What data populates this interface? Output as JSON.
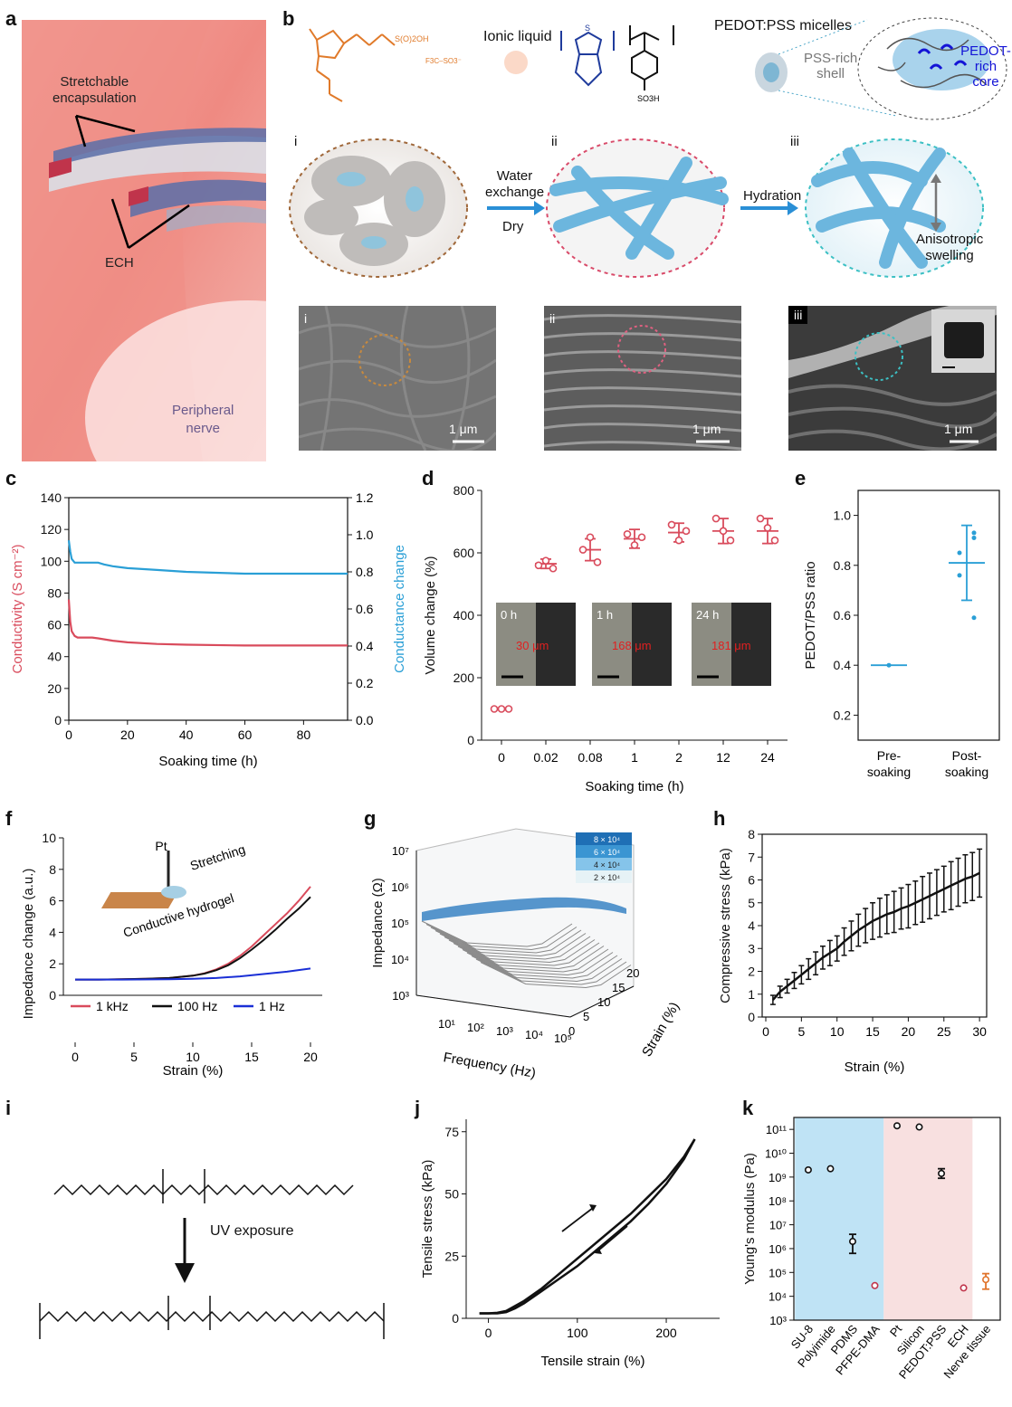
{
  "panel_labels": {
    "a": "a",
    "b": "b",
    "c": "c",
    "d": "d",
    "e": "e",
    "f": "f",
    "g": "g",
    "h": "h",
    "i": "i",
    "j": "j",
    "k": "k"
  },
  "panel_a": {
    "encapsulation": [
      "Stretchable",
      "encapsulation"
    ],
    "ech": "ECH",
    "nerve": [
      "Peripheral",
      "nerve"
    ]
  },
  "panel_b": {
    "ionic_liquid": "Ionic liquid",
    "micelles": "PEDOT:PSS micelles",
    "pss_shell": [
      "PSS-rich",
      "shell"
    ],
    "pedot_core": [
      "PEDOT-rich",
      "core"
    ],
    "stage_labels": [
      "i",
      "ii",
      "iii"
    ],
    "step1": [
      "Water",
      "exchange"
    ],
    "step1_sub": "Dry",
    "step2": "Hydration",
    "anisotropic": [
      "Anisotropic",
      "swelling"
    ],
    "sem_labels": [
      "i",
      "ii",
      "iii"
    ],
    "scale": "1 μm"
  },
  "colors": {
    "red": "#d94b5c",
    "blue": "#2a9fd6",
    "orange": "#e0732a",
    "navy": "#1f3b9c",
    "black": "#111111"
  },
  "chart_data": [
    {
      "id": "c",
      "type": "line",
      "xlabel": "Soaking time (h)",
      "ylabel": "Conductivity (S cm⁻²)",
      "y2label": "Conductance change",
      "xlim": [
        0,
        95
      ],
      "ylim": [
        0,
        140
      ],
      "y2lim": [
        0,
        1.2
      ],
      "xticks": [
        0,
        20,
        40,
        60,
        80
      ],
      "yticks": [
        0,
        20,
        40,
        60,
        80,
        100,
        120,
        140
      ],
      "y2ticks": [
        0.0,
        0.2,
        0.4,
        0.6,
        0.8,
        1.0,
        1.2
      ],
      "series": [
        {
          "name": "Conductivity",
          "axis": "left",
          "x": [
            0,
            0.5,
            1,
            2,
            3,
            5,
            8,
            10,
            15,
            20,
            30,
            40,
            60,
            80,
            95
          ],
          "y": [
            76,
            62,
            56,
            53,
            52,
            52,
            52,
            51.5,
            50,
            49,
            48,
            47.5,
            47,
            47,
            47
          ]
        },
        {
          "name": "Conductance change",
          "axis": "right",
          "x": [
            0,
            0.5,
            1,
            2,
            3,
            5,
            8,
            10,
            12,
            15,
            20,
            30,
            40,
            60,
            80,
            95
          ],
          "y": [
            0.97,
            0.91,
            0.87,
            0.85,
            0.85,
            0.85,
            0.85,
            0.85,
            0.84,
            0.83,
            0.82,
            0.81,
            0.8,
            0.79,
            0.79,
            0.79
          ]
        }
      ]
    },
    {
      "id": "d",
      "type": "scatter",
      "xlabel": "Soaking time (h)",
      "ylabel": "Volume change (%)",
      "categories": [
        "0",
        "0.02",
        "0.08",
        "1",
        "2",
        "12",
        "24"
      ],
      "ylim": [
        0,
        800
      ],
      "yticks": [
        0,
        200,
        400,
        600,
        800
      ],
      "points": [
        [
          100,
          100,
          100
        ],
        [
          560,
          575,
          550
        ],
        [
          610,
          650,
          570
        ],
        [
          660,
          625,
          650
        ],
        [
          690,
          640,
          670
        ],
        [
          710,
          670,
          640
        ],
        [
          710,
          680,
          640
        ]
      ],
      "mean": [
        100,
        565,
        610,
        645,
        665,
        670,
        670
      ],
      "err": [
        3,
        15,
        35,
        30,
        30,
        40,
        40
      ],
      "insets": [
        {
          "time": "0 h",
          "width": "30 μm"
        },
        {
          "time": "1 h",
          "width": "168 μm"
        },
        {
          "time": "24 h",
          "width": "181 μm"
        }
      ]
    },
    {
      "id": "e",
      "type": "scatter",
      "ylabel": "PEDOT/PSS ratio",
      "categories": [
        [
          "Pre-",
          "soaking"
        ],
        [
          "Post-",
          "soaking"
        ]
      ],
      "ylim": [
        0.1,
        1.1
      ],
      "yticks": [
        0.2,
        0.4,
        0.6,
        0.8,
        1.0
      ],
      "points": [
        [
          0.4
        ],
        [
          0.93,
          0.85,
          0.59,
          0.76,
          0.91
        ]
      ],
      "mean": [
        0.4,
        0.81
      ],
      "err": [
        0,
        0.15
      ]
    },
    {
      "id": "f",
      "type": "line",
      "xlabel": "Strain (%)",
      "ylabel": "Impedance change (a.u.)",
      "xlim": [
        -1,
        21
      ],
      "ylim": [
        0,
        10
      ],
      "xticks": [
        0,
        5,
        10,
        15,
        20
      ],
      "yticks": [
        0,
        2,
        4,
        6,
        8,
        10
      ],
      "inset": {
        "pt": "Pt",
        "stretching": "Stretching",
        "hydrogel": "Conductive hydrogel"
      },
      "series": [
        {
          "name": "1 kHz",
          "x": [
            0,
            2,
            4,
            6,
            8,
            10,
            11,
            12,
            13,
            14,
            15,
            16,
            17,
            18,
            19,
            20
          ],
          "y": [
            1,
            1,
            1.02,
            1.05,
            1.1,
            1.25,
            1.4,
            1.65,
            2,
            2.5,
            3.1,
            3.8,
            4.5,
            5.2,
            6,
            6.9
          ]
        },
        {
          "name": "100 Hz",
          "x": [
            0,
            2,
            4,
            6,
            8,
            10,
            11,
            12,
            13,
            14,
            15,
            16,
            17,
            18,
            19,
            20
          ],
          "y": [
            1,
            1,
            1.02,
            1.05,
            1.1,
            1.25,
            1.38,
            1.6,
            1.9,
            2.35,
            2.9,
            3.5,
            4.15,
            4.85,
            5.5,
            6.25
          ]
        },
        {
          "name": "1 Hz",
          "x": [
            0,
            4,
            8,
            10,
            12,
            14,
            16,
            18,
            20
          ],
          "y": [
            1,
            1,
            1.02,
            1.05,
            1.1,
            1.2,
            1.35,
            1.5,
            1.7
          ]
        }
      ]
    },
    {
      "id": "g",
      "type": "surface",
      "xlabel": "Frequency (Hz)",
      "ylabel": "Impedance (Ω)",
      "zlabel": "Strain (%)",
      "ztick_labels": [
        "10³",
        "10⁴",
        "10⁵",
        "10⁶",
        "10⁷"
      ],
      "xtick_labels": [
        "10¹",
        "10²",
        "10³",
        "10⁴",
        "10⁵"
      ],
      "strain_ticks": [
        "0",
        "5",
        "10",
        "15",
        "20"
      ],
      "legend": [
        "8 × 10⁴",
        "6 × 10⁴",
        "4 × 10⁴",
        "2 × 10⁴"
      ]
    },
    {
      "id": "h",
      "type": "line",
      "xlabel": "Strain (%)",
      "ylabel": "Compressive stress (kPa)",
      "xlim": [
        0,
        31
      ],
      "ylim": [
        0,
        8
      ],
      "xticks": [
        0,
        5,
        10,
        15,
        20,
        25,
        30
      ],
      "yticks": [
        0,
        1,
        2,
        3,
        4,
        5,
        6,
        7,
        8
      ],
      "x": [
        1,
        2,
        3,
        4,
        5,
        6,
        7,
        8,
        9,
        10,
        11,
        12,
        13,
        14,
        15,
        16,
        17,
        18,
        19,
        20,
        21,
        22,
        23,
        24,
        25,
        26,
        27,
        28,
        29,
        30
      ],
      "y": [
        0.75,
        1.1,
        1.35,
        1.6,
        1.85,
        2.1,
        2.35,
        2.6,
        2.8,
        3.0,
        3.3,
        3.55,
        3.8,
        4.0,
        4.2,
        4.35,
        4.5,
        4.6,
        4.75,
        4.85,
        5.0,
        5.15,
        5.3,
        5.45,
        5.6,
        5.75,
        5.9,
        6.05,
        6.15,
        6.3
      ],
      "err": [
        0.2,
        0.25,
        0.3,
        0.35,
        0.4,
        0.45,
        0.5,
        0.5,
        0.55,
        0.55,
        0.6,
        0.65,
        0.7,
        0.75,
        0.8,
        0.85,
        0.85,
        0.9,
        0.9,
        0.95,
        0.95,
        1.0,
        1.0,
        1.0,
        1.0,
        1.05,
        1.05,
        1.05,
        1.05,
        1.05
      ]
    },
    {
      "id": "j",
      "type": "line",
      "xlabel": "Tensile strain (%)",
      "ylabel": "Tensile stress (kPa)",
      "xlim": [
        -25,
        260
      ],
      "ylim": [
        0,
        80
      ],
      "xticks": [
        0,
        100,
        200
      ],
      "yticks": [
        0,
        25,
        50,
        75
      ],
      "loading": {
        "x": [
          -10,
          0,
          10,
          20,
          40,
          60,
          80,
          100,
          120,
          140,
          160,
          180,
          200,
          220,
          232
        ],
        "y": [
          2,
          2,
          2.2,
          3,
          7,
          12,
          18,
          24,
          30,
          36,
          42,
          49,
          56,
          65,
          72
        ]
      },
      "unloading": {
        "x": [
          232,
          220,
          200,
          180,
          160,
          140,
          120,
          100,
          80,
          60,
          40,
          30,
          20,
          10,
          0,
          -10
        ],
        "y": [
          72,
          64,
          54,
          46,
          39,
          33,
          27,
          21,
          16,
          11,
          6,
          4,
          2.5,
          2,
          2,
          2
        ]
      }
    },
    {
      "id": "k",
      "type": "scatter",
      "ylabel": "Young's modulus (Pa)",
      "log": true,
      "ylim_exp": [
        3,
        11.5
      ],
      "yticks_exp": [
        3,
        4,
        5,
        6,
        7,
        8,
        9,
        10,
        11
      ],
      "categories": [
        "SU-8",
        "Polyimide",
        "PDMS",
        "PFPE-DMA",
        "Pt",
        "Silicon",
        "PEDOT:PSS",
        "ECH",
        "Nerve tissue"
      ],
      "values_exp": [
        9.3,
        9.35,
        6.3,
        4.45,
        11.15,
        11.1,
        9.15,
        4.35,
        4.7
      ],
      "err_lo": [
        0,
        0,
        0.5,
        0,
        0,
        0,
        0.2,
        0,
        0.4
      ],
      "err_hi": [
        0,
        0,
        0.3,
        0,
        0,
        0,
        0.2,
        0,
        0.25
      ],
      "groups": [
        {
          "from": 0,
          "to": 3,
          "color": "#bfe3f5"
        },
        {
          "from": 4,
          "to": 7,
          "color": "#f8e0e0"
        }
      ]
    }
  ],
  "panel_i": {
    "uv": "UV exposure"
  }
}
